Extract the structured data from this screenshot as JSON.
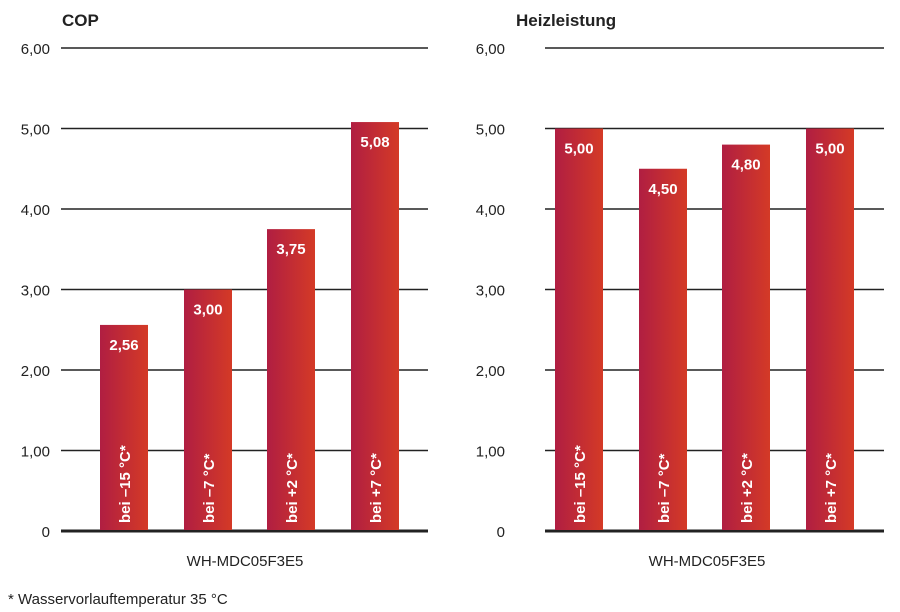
{
  "chart_data": [
    {
      "type": "bar",
      "title": "COP",
      "categories": [
        "bei –15 °C*",
        "bei –7 °C*",
        "bei +2 °C*",
        "bei +7 °C*"
      ],
      "values": [
        2.56,
        3.0,
        3.75,
        5.08
      ],
      "value_labels": [
        "2,56",
        "3,00",
        "3,75",
        "5,08"
      ],
      "xlabel": "WH-MDC05F3E5",
      "ylabel": "",
      "ylim": [
        0,
        6
      ],
      "yticks": [
        0,
        1,
        2,
        3,
        4,
        5,
        6
      ],
      "ytick_labels": [
        "0",
        "1,00",
        "2,00",
        "3,00",
        "4,00",
        "5,00",
        "6,00"
      ],
      "grid": true
    },
    {
      "type": "bar",
      "title": "Heizleistung",
      "categories": [
        "bei –15 °C*",
        "bei –7 °C*",
        "bei +2 °C*",
        "bei +7 °C*"
      ],
      "values": [
        5.0,
        4.5,
        4.8,
        5.0
      ],
      "value_labels": [
        "5,00",
        "4,50",
        "4,80",
        "5,00"
      ],
      "xlabel": "WH-MDC05F3E5",
      "ylabel": "",
      "ylim": [
        0,
        6
      ],
      "yticks": [
        0,
        1,
        2,
        3,
        4,
        5,
        6
      ],
      "ytick_labels": [
        "0",
        "1,00",
        "2,00",
        "3,00",
        "4,00",
        "5,00",
        "6,00"
      ],
      "grid": true
    }
  ],
  "footnote": "* Wasservorlauftemperatur 35 °C",
  "colors": {
    "bar_left": "#b01e42",
    "bar_right": "#d43a26",
    "grid": "#222222"
  }
}
